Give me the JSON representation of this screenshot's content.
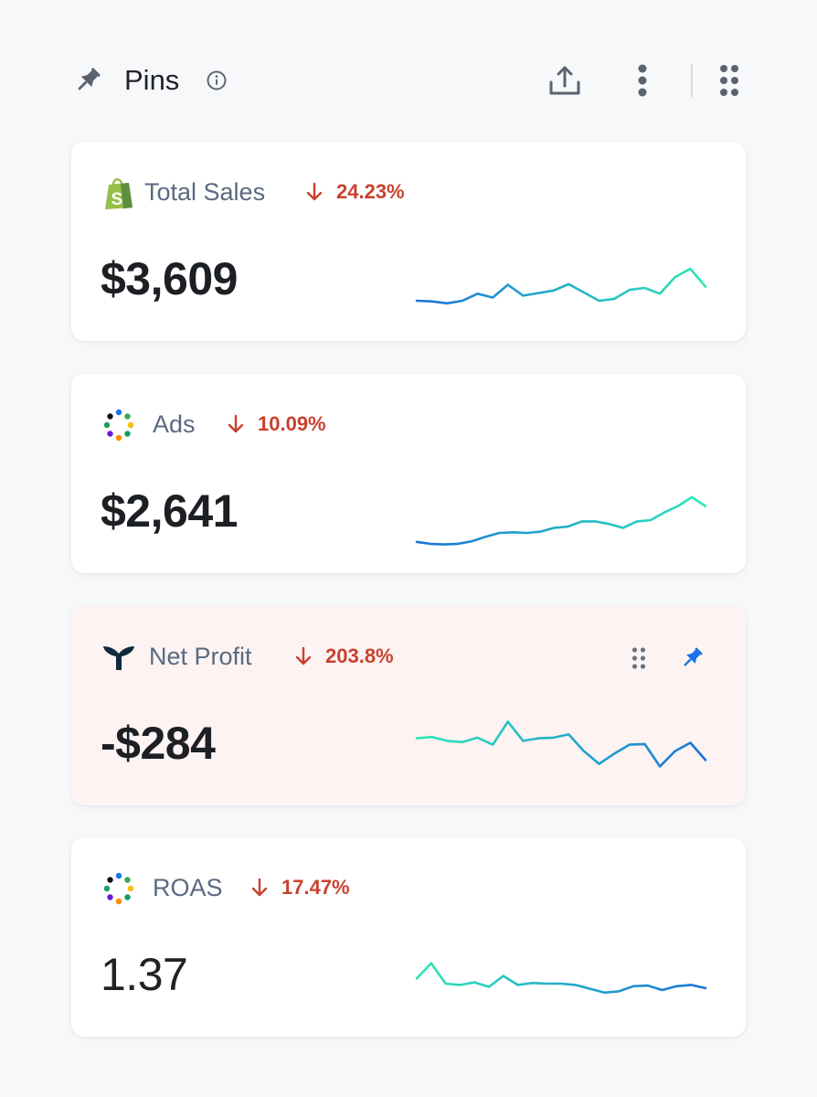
{
  "header": {
    "title": "Pins",
    "icons": [
      "pin-icon",
      "info-icon",
      "export-icon",
      "more-vertical-icon",
      "drag-grid-icon"
    ]
  },
  "colors": {
    "negative": "#c8412f",
    "sparkline_start": "#1a73d9",
    "sparkline_end": "#2ee8b6",
    "highlight_card": "#fdf3f2",
    "pin_active": "#1a73e8"
  },
  "cards": [
    {
      "id": "total-sales",
      "name": "Total Sales",
      "logo": "shopify-icon",
      "change": "24.23%",
      "direction": "down",
      "value": "$3,609",
      "sparkline": [
        0.2,
        0.19,
        0.16,
        0.2,
        0.31,
        0.25,
        0.45,
        0.28,
        0.32,
        0.36,
        0.46,
        0.33,
        0.2,
        0.23,
        0.37,
        0.4,
        0.31,
        0.57,
        0.7,
        0.42
      ]
    },
    {
      "id": "ads",
      "name": "Ads",
      "logo": "ads-dots-icon",
      "change": "10.09%",
      "direction": "down",
      "value": "$2,641",
      "sparkline": [
        0.06,
        0.03,
        0.02,
        0.03,
        0.07,
        0.14,
        0.2,
        0.21,
        0.2,
        0.22,
        0.28,
        0.3,
        0.38,
        0.38,
        0.34,
        0.28,
        0.38,
        0.4,
        0.52,
        0.62,
        0.76,
        0.62
      ]
    },
    {
      "id": "net-profit",
      "name": "Net Profit",
      "logo": "triple-whale-icon",
      "change": "203.8%",
      "direction": "down",
      "value": "-$284",
      "pinned": true,
      "sparkline": [
        0.62,
        0.64,
        0.58,
        0.56,
        0.63,
        0.52,
        0.88,
        0.58,
        0.62,
        0.63,
        0.68,
        0.42,
        0.22,
        0.38,
        0.52,
        0.53,
        0.18,
        0.42,
        0.55,
        0.28
      ]
    },
    {
      "id": "roas",
      "name": "ROAS",
      "logo": "ads-dots-icon",
      "change": "17.47%",
      "direction": "down",
      "value": "1.37",
      "sparkline": [
        0.48,
        0.72,
        0.4,
        0.38,
        0.42,
        0.35,
        0.52,
        0.38,
        0.41,
        0.4,
        0.4,
        0.38,
        0.32,
        0.26,
        0.28,
        0.36,
        0.37,
        0.3,
        0.36,
        0.38,
        0.33
      ]
    }
  ]
}
